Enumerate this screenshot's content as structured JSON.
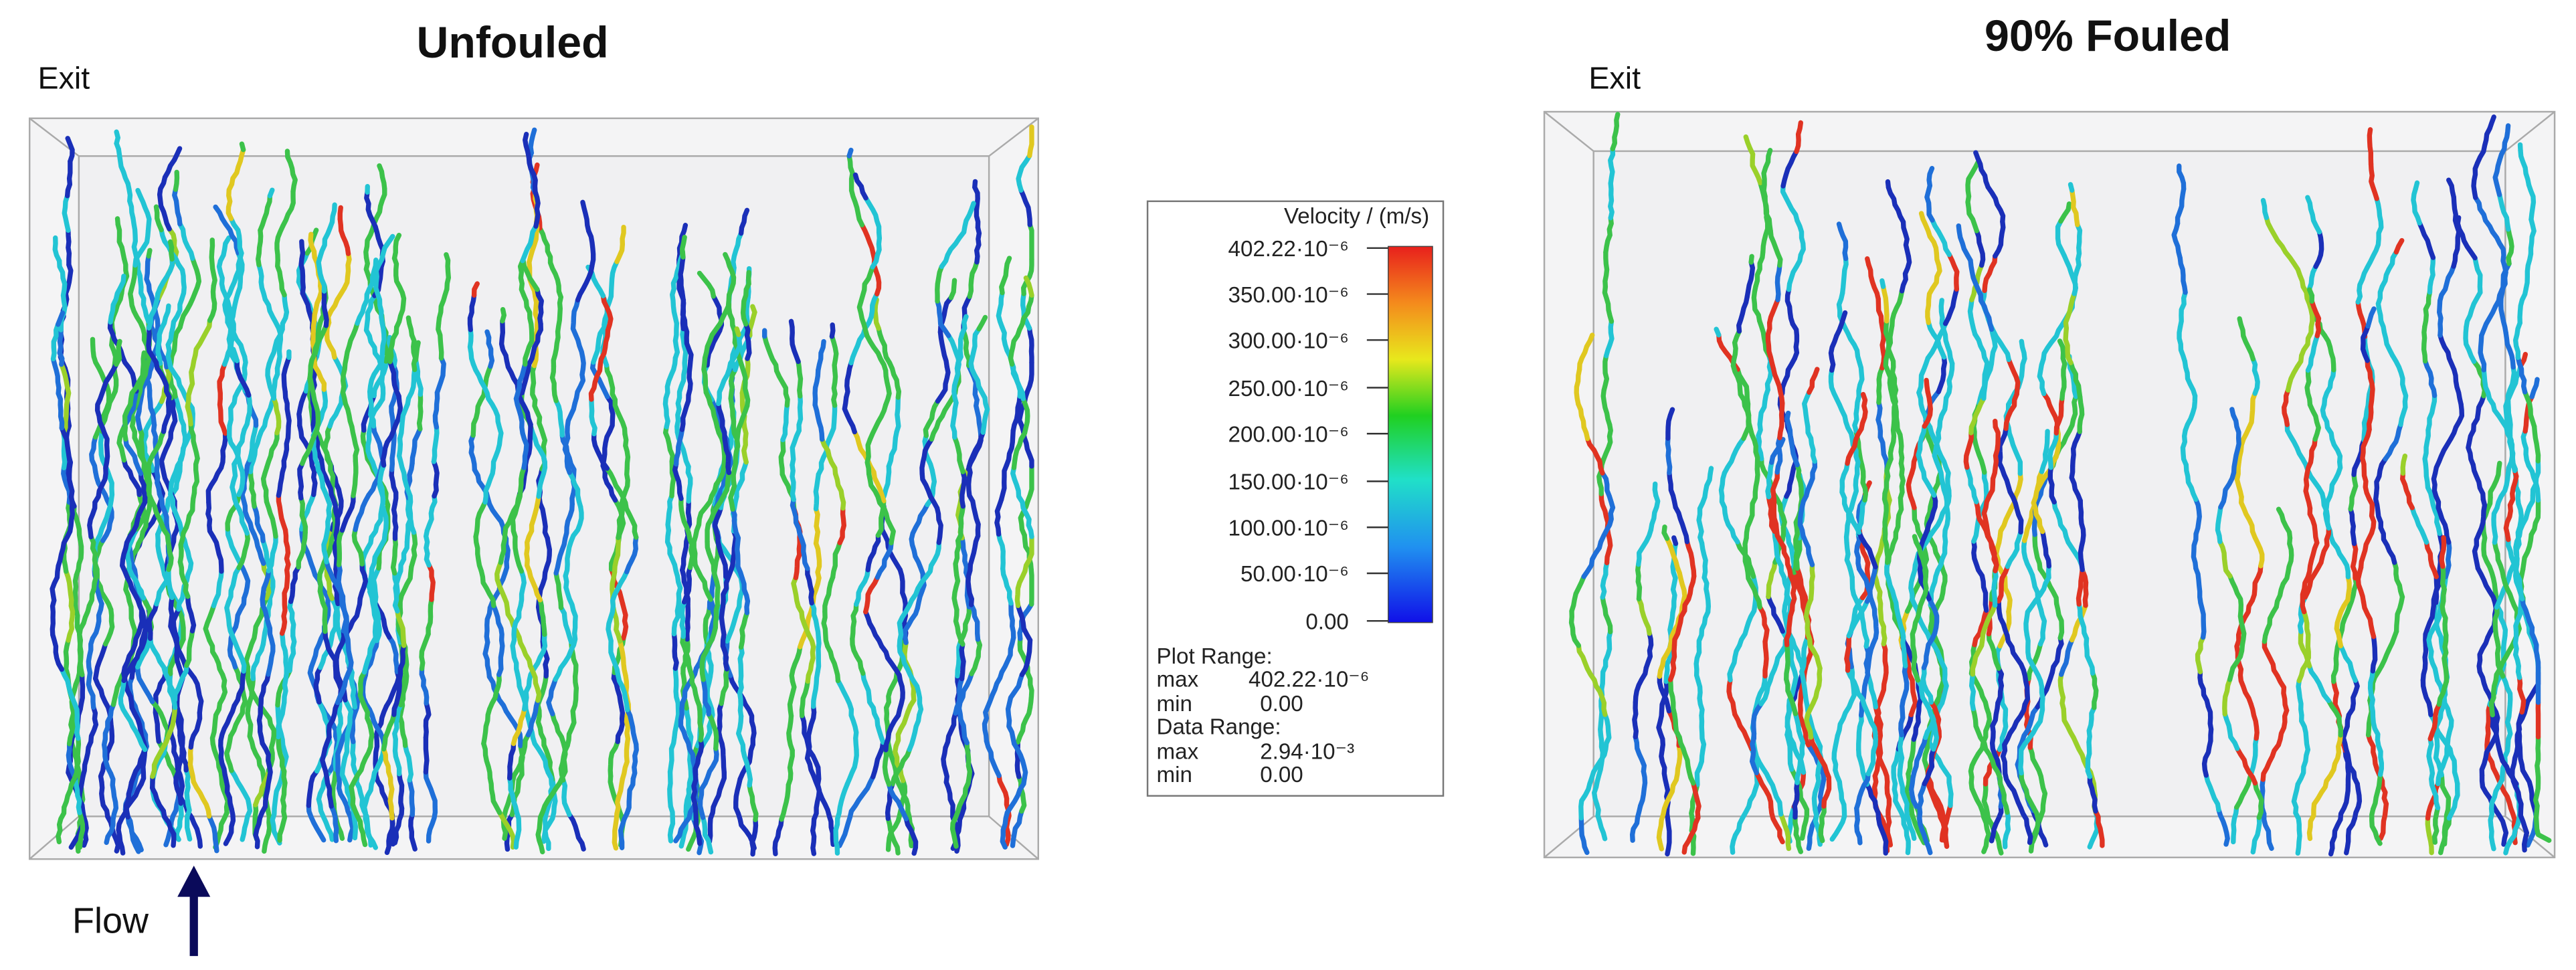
{
  "panels": [
    {
      "title": "Unfouled",
      "exit_label": "Exit"
    },
    {
      "title": "90% Fouled",
      "exit_label": "Exit"
    }
  ],
  "flow_label": "Flow",
  "legend": {
    "title": "Velocity / (m/s)",
    "tick_labels": [
      "402.22·10⁻⁶",
      "350.00·10⁻⁶",
      "300.00·10⁻⁶",
      "250.00·10⁻⁶",
      "200.00·10⁻⁶",
      "150.00·10⁻⁶",
      "100.00·10⁻⁶",
      "50.00·10⁻⁶",
      "0.00"
    ],
    "plot_range": {
      "heading": "Plot Range:",
      "max_label": "max",
      "max": "402.22·10⁻⁶",
      "min_label": "min",
      "min": "0.00"
    },
    "data_range": {
      "heading": "Data Range:",
      "max_label": "max",
      "max": "2.94·10⁻³",
      "min_label": "min",
      "min": "0.00"
    }
  }
}
